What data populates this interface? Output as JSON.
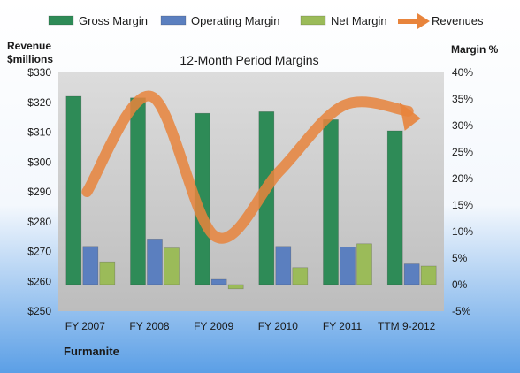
{
  "chart_data": {
    "type": "bar",
    "title": "12-Month Period Margins",
    "company": "Furmanite",
    "categories": [
      "FY 2007",
      "FY 2008",
      "FY 2009",
      "FY 2010",
      "FY 2011",
      "TTM 9-2012"
    ],
    "left_axis": {
      "label_line1": "Revenue",
      "label_line2": "$millions",
      "ticks": [
        "$250",
        "$260",
        "$270",
        "$280",
        "$290",
        "$300",
        "$310",
        "$320",
        "$330"
      ],
      "range": [
        250,
        330
      ]
    },
    "right_axis": {
      "label": "Margin %",
      "ticks": [
        "-5%",
        "0%",
        "5%",
        "10%",
        "15%",
        "20%",
        "25%",
        "30%",
        "35%",
        "40%"
      ],
      "range": [
        -5,
        40
      ]
    },
    "series": [
      {
        "name": "Gross Margin",
        "kind": "bar",
        "axis": "right",
        "color": "#2e8b57",
        "values": [
          35.5,
          35.2,
          32.3,
          32.6,
          31.1,
          29.0
        ]
      },
      {
        "name": "Operating Margin",
        "kind": "bar",
        "axis": "right",
        "color": "#5b7fbf",
        "values": [
          7.2,
          8.6,
          1.0,
          7.2,
          7.1,
          3.9
        ]
      },
      {
        "name": "Net Margin",
        "kind": "bar",
        "axis": "right",
        "color": "#9bbb59",
        "values": [
          4.3,
          6.9,
          -0.8,
          3.2,
          7.7,
          3.5
        ]
      },
      {
        "name": "Revenues",
        "kind": "line",
        "axis": "left",
        "color": "#e8843c",
        "values": [
          290,
          322,
          275,
          297,
          319,
          317
        ]
      }
    ],
    "legend_position": "top",
    "grid": false,
    "colors": {
      "plot_bg": "#c8c8c8",
      "background_top": "#ffffff",
      "background_bottom": "#5b9fe6"
    }
  }
}
